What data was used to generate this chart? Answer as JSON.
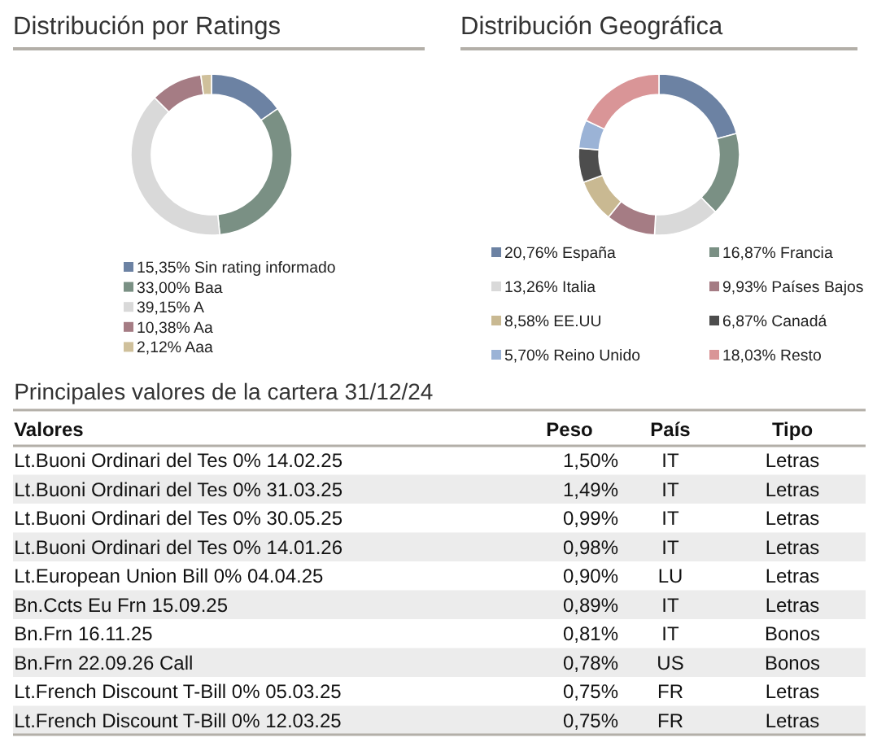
{
  "chart_data": [
    {
      "type": "donut",
      "title": "Distribución por Ratings",
      "categories": [
        "Sin rating informado",
        "Baa",
        "A",
        "Aa",
        "Aaa"
      ],
      "values": [
        15.35,
        33.0,
        39.15,
        10.38,
        2.12
      ],
      "value_labels": [
        "15,35%",
        "33,00%",
        "39,15%",
        "10,38%",
        "2,12%"
      ],
      "colors": [
        "#6c82a3",
        "#7a9084",
        "#d9d9d9",
        "#a57c84",
        "#cfc09b"
      ],
      "legend": "bottom"
    },
    {
      "type": "donut",
      "title": "Distribución Geográfica",
      "categories": [
        "España",
        "Francia",
        "Italia",
        "Países Bajos",
        "EE.UU",
        "Canadá",
        "Reino Unido",
        "Resto"
      ],
      "values": [
        20.76,
        16.87,
        13.26,
        9.93,
        8.58,
        6.87,
        5.7,
        18.03
      ],
      "value_labels": [
        "20,76%",
        "16,87%",
        "13,26%",
        "9,93%",
        "8,58%",
        "6,87%",
        "5,70%",
        "18,03%"
      ],
      "colors": [
        "#6c82a3",
        "#7a9084",
        "#d9d9d9",
        "#a57c84",
        "#c9b992",
        "#4d4d4d",
        "#9bb3d6",
        "#d99597"
      ],
      "legend": "bottom"
    },
    {
      "type": "other",
      "title": "Principales valores de la cartera 31/12/24",
      "categories": [
        "Valores",
        "Peso",
        "País",
        "Tipo"
      ],
      "cell_labels": [
        [
          "Lt.Buoni Ordinari del Tes 0% 14.02.25",
          "1,50%",
          "IT",
          "Letras"
        ],
        [
          "Lt.Buoni Ordinari del Tes 0% 31.03.25",
          "1,49%",
          "IT",
          "Letras"
        ],
        [
          "Lt.Buoni Ordinari del Tes 0% 30.05.25",
          "0,99%",
          "IT",
          "Letras"
        ],
        [
          "Lt.Buoni Ordinari del Tes 0% 14.01.26",
          "0,98%",
          "IT",
          "Letras"
        ],
        [
          "Lt.European Union Bill 0% 04.04.25",
          "0,90%",
          "LU",
          "Letras"
        ],
        [
          "Bn.Ccts Eu Frn 15.09.25",
          "0,89%",
          "IT",
          "Letras"
        ],
        [
          "Bn.Frn 16.11.25",
          "0,81%",
          "IT",
          "Bonos"
        ],
        [
          "Bn.Frn 22.09.26 Call",
          "0,78%",
          "US",
          "Bonos"
        ],
        [
          "Lt.French Discount T-Bill 0% 05.03.25",
          "0,75%",
          "FR",
          "Letras"
        ],
        [
          "Lt.French Discount T-Bill 0% 12.03.25",
          "0,75%",
          "FR",
          "Letras"
        ]
      ]
    }
  ]
}
